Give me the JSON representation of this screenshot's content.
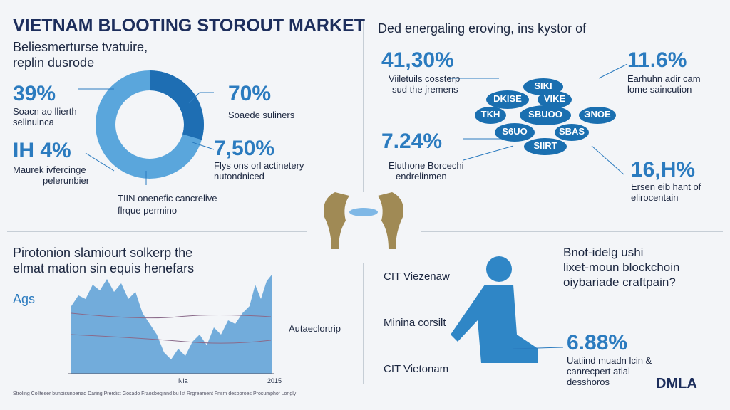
{
  "header": {
    "title": "VIETNAM BLOOTING STOROUT MARKET",
    "subtitle": [
      "Beliesmerturse tvatuire,",
      "replin dusrode"
    ]
  },
  "donut_section": {
    "stats": [
      {
        "value": "39%",
        "label": [
          "Soacn ao llierth",
          "selinuinca"
        ]
      },
      {
        "value": "IH 4%",
        "label": [
          "Maurek ivfercinge",
          "pelerunbier"
        ]
      },
      {
        "value": "70%",
        "label": [
          "Soaede suliners"
        ]
      },
      {
        "value": "7,50%",
        "label": [
          "Flys ons orl actinetery",
          "nutondniced"
        ]
      }
    ],
    "note": [
      "TIIN onenefic cancrelive",
      "flrque permino"
    ]
  },
  "network_section": {
    "heading": "Ded energaling eroving, ins kystor of",
    "stats": [
      {
        "value": "41,30%",
        "label": [
          "Viiletuils cossterp",
          "sud the jremens"
        ]
      },
      {
        "value": "11.6%",
        "label": [
          "Earhuhn adir cam",
          "lome saincution"
        ]
      },
      {
        "value": "7.24%",
        "label": [
          "Eluthone Borcechi",
          "endrelinmen"
        ]
      },
      {
        "value": "16,H%",
        "label": [
          "Ersen eib hant of",
          "elirocentain"
        ]
      }
    ],
    "bubbles": [
      "SIKI",
      "DKISE",
      "VIKE",
      "TKH",
      "SBUOO",
      "ЭNOE",
      "S6UO",
      "SBAS",
      "SIIRT"
    ]
  },
  "trend_section": {
    "heading": [
      "Pirotonion slamiourt solkerp the",
      "elmat mation sin equis henefars"
    ],
    "axis_label": "Ags",
    "side_label": "Autaeclortrip",
    "x_labels": [
      "Nia",
      "2015"
    ],
    "footer": "Stroling Coilteser bunbisunoenad Daring Prerdist Gosado Fraosbeginnd bu Ist Rrgreament Fnsm desoproes Prosumphof Longly"
  },
  "person_section": {
    "heading": [
      "Bnot-idelg ushi",
      "lixet-moun blockchoin",
      "oiybariade craftpain?"
    ],
    "labels": [
      "CIT Viezenaw",
      "Minina corsilt",
      "CIT Vietonam"
    ],
    "stat": {
      "value": "6.88%",
      "label": [
        "Uatiind muadn lcin &",
        "canrecpert atial",
        "desshoros"
      ]
    },
    "logo": "DMLA"
  }
}
